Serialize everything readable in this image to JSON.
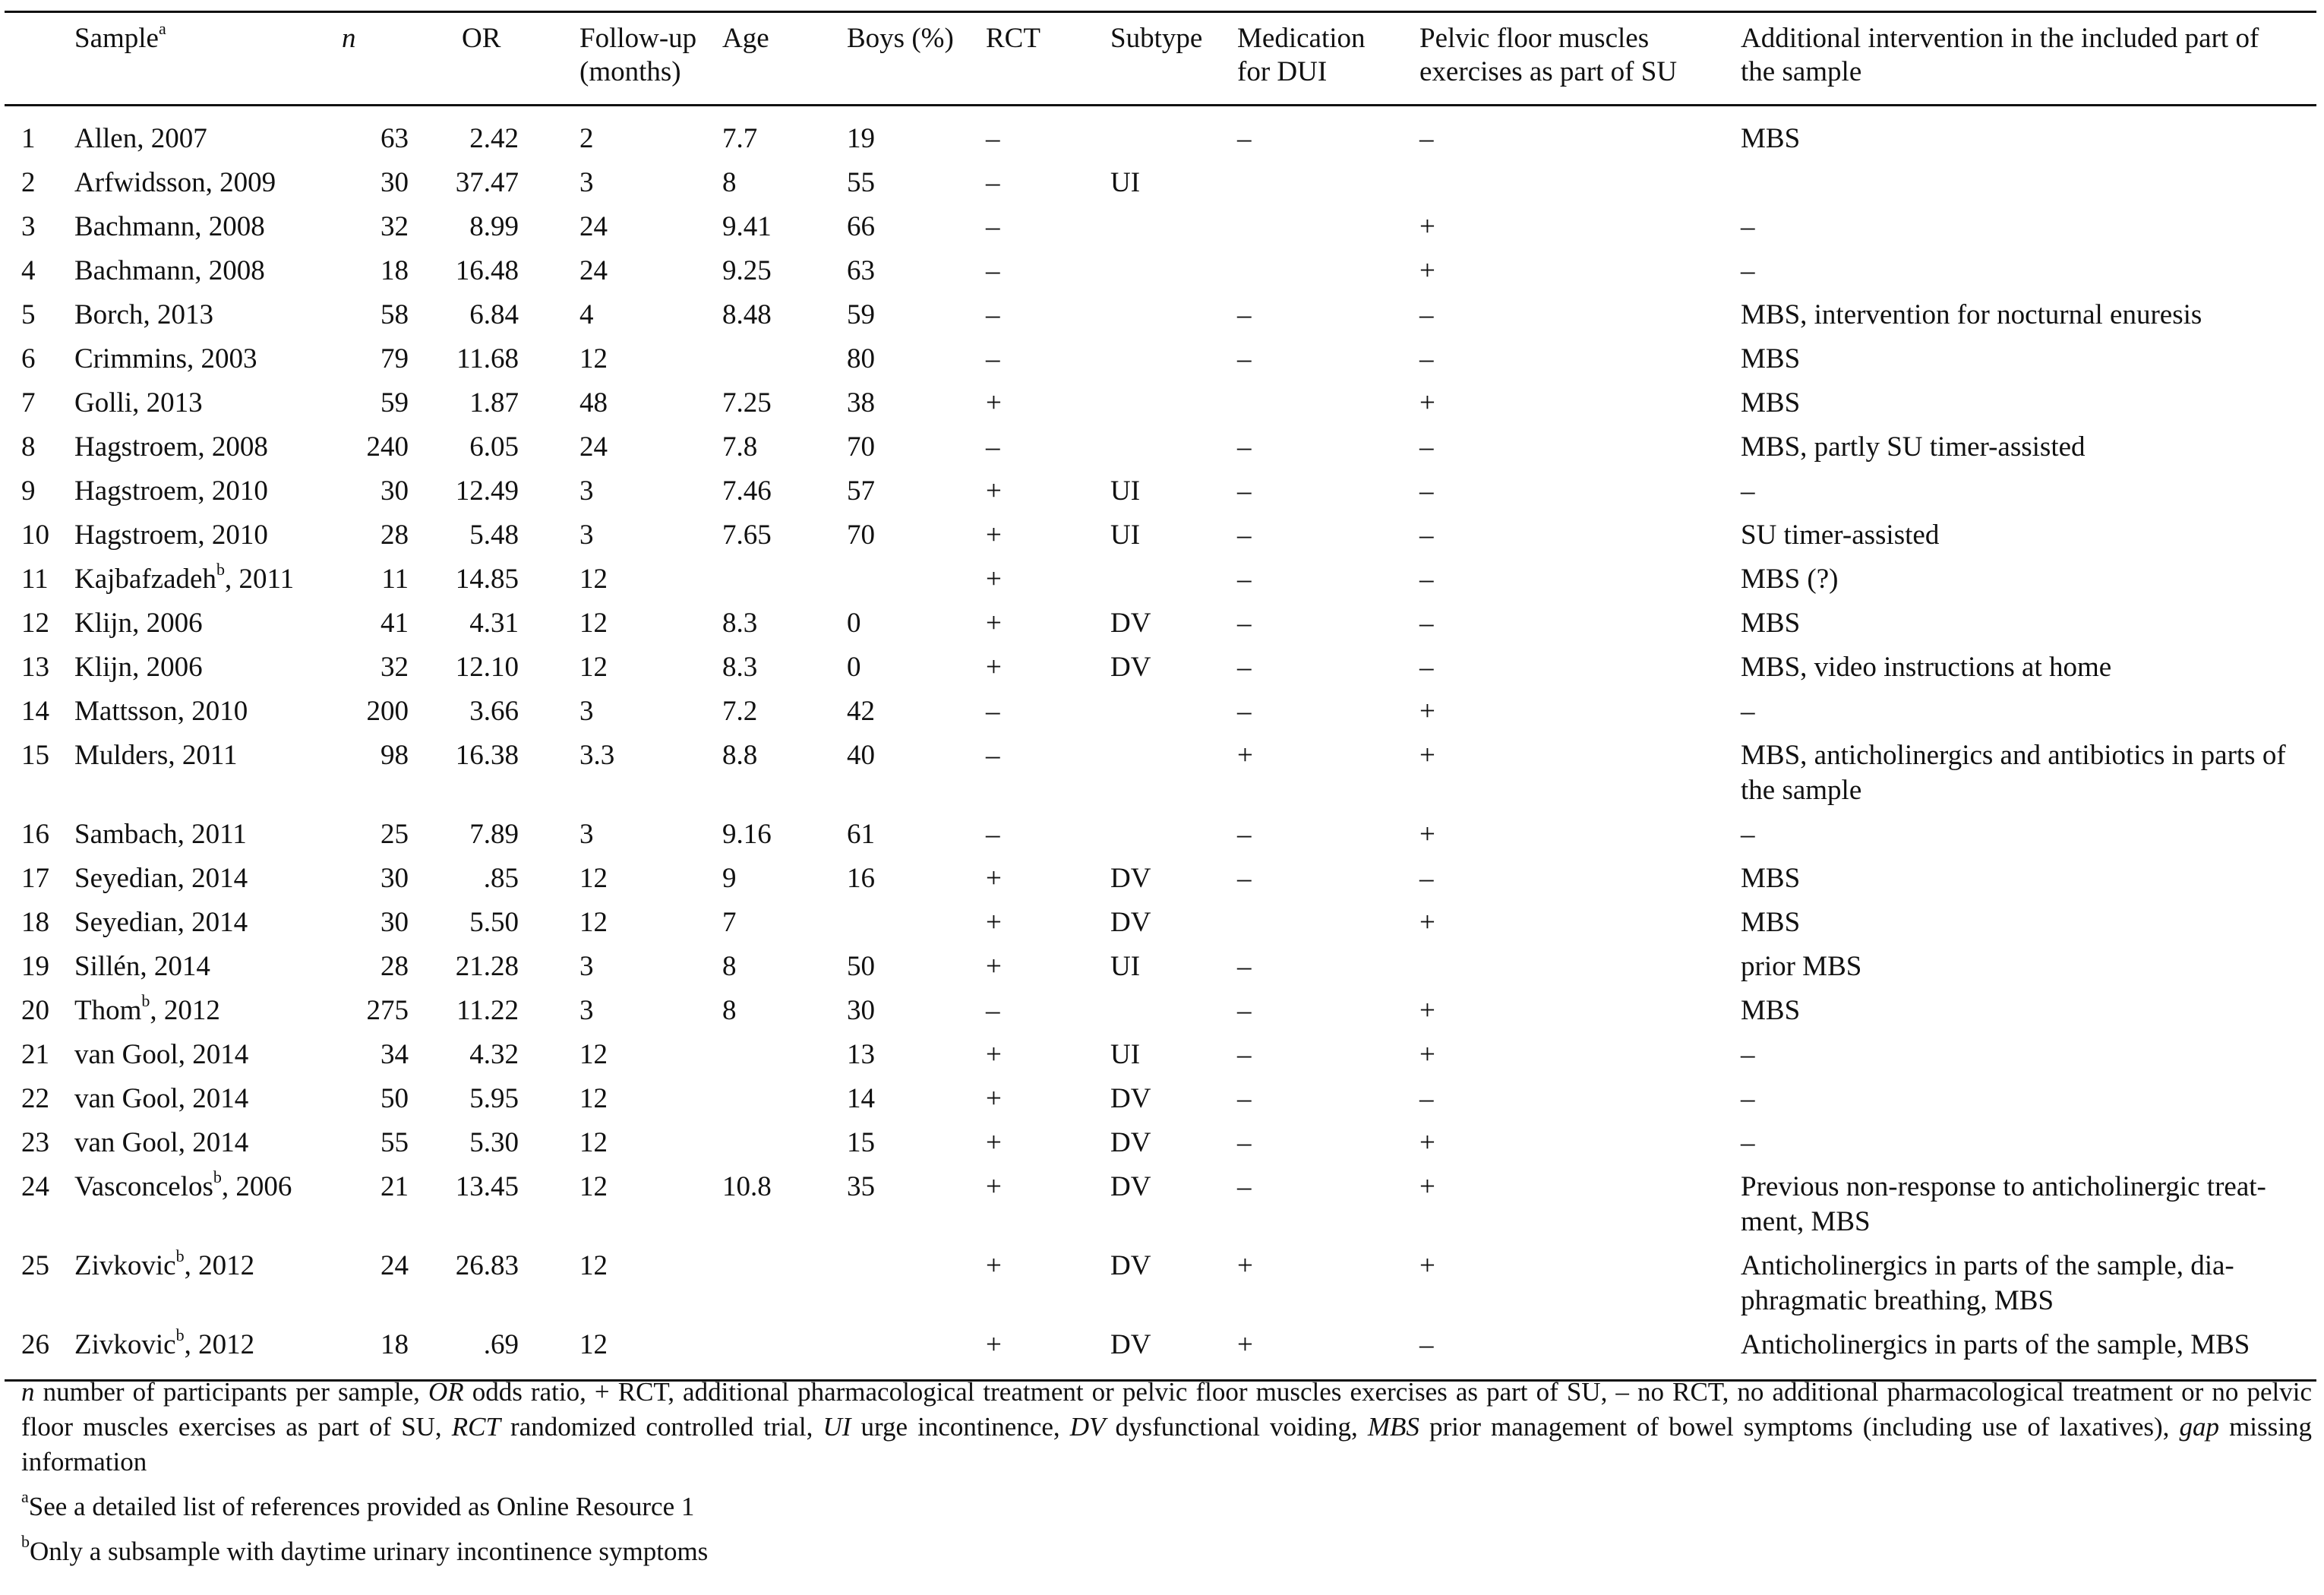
{
  "table": {
    "headers": {
      "num": "",
      "sample": "Sample",
      "sample_sup": "a",
      "n": "n",
      "or": "OR",
      "follow_up_1": "Follow-up",
      "follow_up_2": "(months)",
      "age": "Age",
      "boys": "Boys (%)",
      "rct": "RCT",
      "subtype": "Subtype",
      "medication_1": "Medication",
      "medication_2": "for DUI",
      "pfm_1": "Pelvic floor muscles",
      "pfm_2": "exercises as part of SU",
      "additional_1": "Additional intervention in the included part of",
      "additional_2": "the sample"
    },
    "rows": [
      {
        "num": "1",
        "author": "Allen",
        "sup": "",
        "year": ", 2007",
        "n": "63",
        "or": "2.42",
        "follow_up": "2",
        "age": "7.7",
        "boys": "19",
        "rct": "–",
        "subtype": "",
        "medication": "–",
        "pfm": "–",
        "additional": "MBS"
      },
      {
        "num": "2",
        "author": "Arfwidsson",
        "sup": "",
        "year": ", 2009",
        "n": "30",
        "or": "37.47",
        "follow_up": "3",
        "age": "8",
        "boys": "55",
        "rct": "–",
        "subtype": "UI",
        "medication": "",
        "pfm": "",
        "additional": ""
      },
      {
        "num": "3",
        "author": "Bachmann",
        "sup": "",
        "year": ", 2008",
        "n": "32",
        "or": "8.99",
        "follow_up": "24",
        "age": "9.41",
        "boys": "66",
        "rct": "–",
        "subtype": "",
        "medication": "",
        "pfm": "+",
        "additional": "–"
      },
      {
        "num": "4",
        "author": "Bachmann",
        "sup": "",
        "year": ", 2008",
        "n": "18",
        "or": "16.48",
        "follow_up": "24",
        "age": "9.25",
        "boys": "63",
        "rct": "–",
        "subtype": "",
        "medication": "",
        "pfm": "+",
        "additional": "–"
      },
      {
        "num": "5",
        "author": "Borch",
        "sup": "",
        "year": ", 2013",
        "n": "58",
        "or": "6.84",
        "follow_up": "4",
        "age": "8.48",
        "boys": "59",
        "rct": "–",
        "subtype": "",
        "medication": "–",
        "pfm": "–",
        "additional": "MBS, intervention for nocturnal enuresis"
      },
      {
        "num": "6",
        "author": "Crimmins",
        "sup": "",
        "year": ", 2003",
        "n": "79",
        "or": "11.68",
        "follow_up": "12",
        "age": "",
        "boys": "80",
        "rct": "–",
        "subtype": "",
        "medication": "–",
        "pfm": "–",
        "additional": "MBS"
      },
      {
        "num": "7",
        "author": "Golli",
        "sup": "",
        "year": ", 2013",
        "n": "59",
        "or": "1.87",
        "follow_up": "48",
        "age": "7.25",
        "boys": "38",
        "rct": "+",
        "subtype": "",
        "medication": "",
        "pfm": "+",
        "additional": "MBS"
      },
      {
        "num": "8",
        "author": "Hagstroem",
        "sup": "",
        "year": ", 2008",
        "n": "240",
        "or": "6.05",
        "follow_up": "24",
        "age": "7.8",
        "boys": "70",
        "rct": "–",
        "subtype": "",
        "medication": "–",
        "pfm": "–",
        "additional": "MBS, partly SU timer-assisted"
      },
      {
        "num": "9",
        "author": "Hagstroem",
        "sup": "",
        "year": ", 2010",
        "n": "30",
        "or": "12.49",
        "follow_up": "3",
        "age": "7.46",
        "boys": "57",
        "rct": "+",
        "subtype": "UI",
        "medication": "–",
        "pfm": "–",
        "additional": "–"
      },
      {
        "num": "10",
        "author": "Hagstroem",
        "sup": "",
        "year": ", 2010",
        "n": "28",
        "or": "5.48",
        "follow_up": "3",
        "age": "7.65",
        "boys": "70",
        "rct": "+",
        "subtype": "UI",
        "medication": "–",
        "pfm": "–",
        "additional": "SU timer-assisted"
      },
      {
        "num": "11",
        "author": "Kajbafzadeh",
        "sup": "b",
        "year": ", 2011",
        "n": "11",
        "or": "14.85",
        "follow_up": "12",
        "age": "",
        "boys": "",
        "rct": "+",
        "subtype": "",
        "medication": "–",
        "pfm": "–",
        "additional": "MBS (?)"
      },
      {
        "num": "12",
        "author": "Klijn",
        "sup": "",
        "year": ", 2006",
        "n": "41",
        "or": "4.31",
        "follow_up": "12",
        "age": "8.3",
        "boys": "0",
        "rct": "+",
        "subtype": "DV",
        "medication": "–",
        "pfm": "–",
        "additional": "MBS"
      },
      {
        "num": "13",
        "author": "Klijn",
        "sup": "",
        "year": ", 2006",
        "n": "32",
        "or": "12.10",
        "follow_up": "12",
        "age": "8.3",
        "boys": "0",
        "rct": "+",
        "subtype": "DV",
        "medication": "–",
        "pfm": "–",
        "additional": "MBS, video instructions at home"
      },
      {
        "num": "14",
        "author": "Mattsson",
        "sup": "",
        "year": ", 2010",
        "n": "200",
        "or": "3.66",
        "follow_up": "3",
        "age": "7.2",
        "boys": "42",
        "rct": "–",
        "subtype": "",
        "medication": "–",
        "pfm": "+",
        "additional": "–"
      },
      {
        "num": "15",
        "author": "Mulders",
        "sup": "",
        "year": ", 2011",
        "n": "98",
        "or": "16.38",
        "follow_up": "3.3",
        "age": "8.8",
        "boys": "40",
        "rct": "–",
        "subtype": "",
        "medication": "+",
        "pfm": "+",
        "additional": "MBS, anticholinergics and antibiotics in parts of the sample"
      },
      {
        "num": "16",
        "author": "Sambach",
        "sup": "",
        "year": ", 2011",
        "n": "25",
        "or": "7.89",
        "follow_up": "3",
        "age": "9.16",
        "boys": "61",
        "rct": "–",
        "subtype": "",
        "medication": "–",
        "pfm": "+",
        "additional": "–"
      },
      {
        "num": "17",
        "author": "Seyedian",
        "sup": "",
        "year": ", 2014",
        "n": "30",
        "or": ".85",
        "follow_up": "12",
        "age": "9",
        "boys": "16",
        "rct": "+",
        "subtype": "DV",
        "medication": "–",
        "pfm": "–",
        "additional": "MBS"
      },
      {
        "num": "18",
        "author": "Seyedian",
        "sup": "",
        "year": ", 2014",
        "n": "30",
        "or": "5.50",
        "follow_up": "12",
        "age": "7",
        "boys": "",
        "rct": "+",
        "subtype": "DV",
        "medication": "",
        "pfm": "+",
        "additional": "MBS"
      },
      {
        "num": "19",
        "author": "Sillén",
        "sup": "",
        "year": ", 2014",
        "n": "28",
        "or": "21.28",
        "follow_up": "3",
        "age": "8",
        "boys": "50",
        "rct": "+",
        "subtype": "UI",
        "medication": "–",
        "pfm": "",
        "additional": "prior MBS"
      },
      {
        "num": "20",
        "author": "Thom",
        "sup": "b",
        "year": ", 2012",
        "n": "275",
        "or": "11.22",
        "follow_up": "3",
        "age": "8",
        "boys": "30",
        "rct": "–",
        "subtype": "",
        "medication": "–",
        "pfm": "+",
        "additional": "MBS"
      },
      {
        "num": "21",
        "author": "van Gool",
        "sup": "",
        "year": ", 2014",
        "n": "34",
        "or": "4.32",
        "follow_up": "12",
        "age": "",
        "boys": "13",
        "rct": "+",
        "subtype": "UI",
        "medication": "–",
        "pfm": "+",
        "additional": "–"
      },
      {
        "num": "22",
        "author": "van Gool",
        "sup": "",
        "year": ", 2014",
        "n": "50",
        "or": "5.95",
        "follow_up": "12",
        "age": "",
        "boys": "14",
        "rct": "+",
        "subtype": "DV",
        "medication": "–",
        "pfm": "–",
        "additional": "–"
      },
      {
        "num": "23",
        "author": "van Gool",
        "sup": "",
        "year": ", 2014",
        "n": "55",
        "or": "5.30",
        "follow_up": "12",
        "age": "",
        "boys": "15",
        "rct": "+",
        "subtype": "DV",
        "medication": "–",
        "pfm": "+",
        "additional": "–"
      },
      {
        "num": "24",
        "author": "Vasconcelos",
        "sup": "b",
        "year": ", 2006",
        "n": "21",
        "or": "13.45",
        "follow_up": "12",
        "age": "10.8",
        "boys": "35",
        "rct": "+",
        "subtype": "DV",
        "medication": "–",
        "pfm": "+",
        "additional": "Previous non-response to anticholinergic treat-ment, MBS"
      },
      {
        "num": "25",
        "author": "Zivkovic",
        "sup": "b",
        "year": ", 2012",
        "n": "24",
        "or": "26.83",
        "follow_up": "12",
        "age": "",
        "boys": "",
        "rct": "+",
        "subtype": "DV",
        "medication": "+",
        "pfm": "+",
        "additional": "Anticholinergics in parts of the sample, dia-phragmatic breathing, MBS"
      },
      {
        "num": "26",
        "author": "Zivkovic",
        "sup": "b",
        "year": ", 2012",
        "n": "18",
        "or": ".69",
        "follow_up": "12",
        "age": "",
        "boys": "",
        "rct": "+",
        "subtype": "DV",
        "medication": "+",
        "pfm": "–",
        "additional": "Anticholinergics in parts of the sample, MBS"
      }
    ]
  },
  "notes": {
    "legend": [
      {
        "term": "n",
        "desc": " number of participants per sample, "
      },
      {
        "term": "OR",
        "desc": " odds ratio, + RCT, additional pharmacological treatment or pelvic floor muscles exercises as part of SU, – no RCT, no additional pharmacological treatment or no pelvic floor muscles exercises as part of SU, "
      },
      {
        "term": "RCT",
        "desc": " randomized controlled trial, "
      },
      {
        "term": "UI",
        "desc": " urge incontinence, "
      },
      {
        "term": "DV",
        "desc": " dysfunctional voiding, "
      },
      {
        "term": "MBS",
        "desc": " prior management of bowel symptoms (including use of laxatives), "
      },
      {
        "term": "gap",
        "desc": " missing information"
      }
    ],
    "footnote_a_mark": "a",
    "footnote_a": "See a detailed list of references provided as Online Resource 1",
    "footnote_b_mark": "b",
    "footnote_b": "Only a subsample with daytime urinary incontinence symptoms"
  }
}
